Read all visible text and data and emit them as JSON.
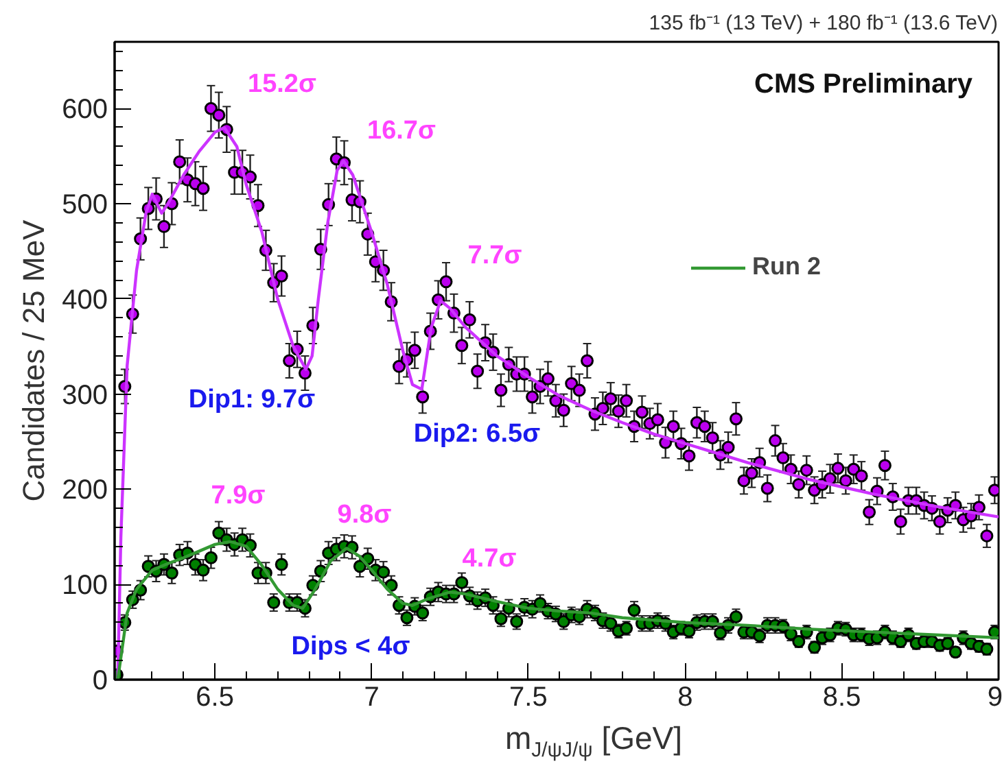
{
  "chart_data": {
    "type": "scatter",
    "title": "135 fb⁻¹ (13 TeV) + 180 fb⁻¹ (13.6 TeV)",
    "xlabel": "m$_{J/ψJ/ψ}$ [GeV]",
    "ylabel": "Candidates / 25 MeV",
    "xlim": [
      6.18,
      9.0
    ],
    "xticks": [
      6.5,
      7,
      7.5,
      8,
      8.5,
      9
    ],
    "ylim": [
      0,
      670
    ],
    "yticks": [
      0,
      100,
      200,
      300,
      400,
      500,
      600
    ],
    "grid": false,
    "legend": "right",
    "x": [
      6.1875,
      6.2125,
      6.2375,
      6.2625,
      6.2875,
      6.3125,
      6.3375,
      6.3625,
      6.3875,
      6.4125,
      6.4375,
      6.4625,
      6.4875,
      6.5125,
      6.5375,
      6.5625,
      6.5875,
      6.6125,
      6.6375,
      6.6625,
      6.6875,
      6.7125,
      6.7375,
      6.7625,
      6.7875,
      6.8125,
      6.8375,
      6.8625,
      6.8875,
      6.9125,
      6.9375,
      6.9625,
      6.9875,
      7.0125,
      7.0375,
      7.0625,
      7.0875,
      7.1125,
      7.1375,
      7.1625,
      7.1875,
      7.2125,
      7.2375,
      7.2625,
      7.2875,
      7.3125,
      7.3375,
      7.3625,
      7.3875,
      7.4125,
      7.4375,
      7.4625,
      7.4875,
      7.5125,
      7.5375,
      7.5625,
      7.5875,
      7.6125,
      7.6375,
      7.6625,
      7.6875,
      7.7125,
      7.7375,
      7.7625,
      7.7875,
      7.8125,
      7.8375,
      7.8625,
      7.8875,
      7.9125,
      7.9375,
      7.9625,
      7.9875,
      8.0125,
      8.0375,
      8.0625,
      8.0875,
      8.1125,
      8.1375,
      8.1625,
      8.1875,
      8.2125,
      8.2375,
      8.2625,
      8.2875,
      8.3125,
      8.3375,
      8.3625,
      8.3875,
      8.4125,
      8.4375,
      8.4625,
      8.4875,
      8.5125,
      8.5375,
      8.5625,
      8.5875,
      8.6125,
      8.6375,
      8.6625,
      8.6875,
      8.7125,
      8.7375,
      8.7625,
      8.7875,
      8.8125,
      8.8375,
      8.8625,
      8.8875,
      8.9125,
      8.9375,
      8.9625,
      8.9875
    ],
    "series": [
      {
        "marker": "circle",
        "color": "#bb00ee",
        "values": [
          30,
          308,
          384,
          463,
          495,
          505,
          476,
          500,
          544,
          525,
          521,
          516,
          600,
          593,
          578,
          533,
          533,
          528,
          498,
          451,
          417,
          424,
          335,
          347,
          322,
          372,
          452,
          499,
          547,
          543,
          504,
          502,
          468,
          439,
          430,
          397,
          329,
          336,
          346,
          297,
          366,
          399,
          418,
          385,
          351,
          378,
          324,
          354,
          344,
          304,
          331,
          321,
          321,
          297,
          308,
          316,
          293,
          283,
          311,
          304,
          335,
          279,
          285,
          295,
          282,
          293,
          266,
          281,
          269,
          273,
          249,
          266,
          248,
          235,
          270,
          266,
          254,
          236,
          244,
          274,
          209,
          217,
          228,
          201,
          251,
          233,
          221,
          205,
          220,
          199,
          205,
          211,
          222,
          209,
          221,
          214,
          176,
          198,
          225,
          192,
          166,
          188,
          188,
          183,
          180,
          166,
          178,
          183,
          168,
          172,
          181,
          151,
          199
        ],
        "errors": [
          5,
          18,
          20,
          22,
          22,
          22,
          22,
          22,
          23,
          23,
          23,
          23,
          24,
          24,
          24,
          23,
          23,
          23,
          22,
          21,
          20,
          21,
          18,
          19,
          18,
          19,
          21,
          22,
          23,
          23,
          22,
          22,
          22,
          21,
          21,
          20,
          18,
          18,
          19,
          17,
          19,
          20,
          20,
          20,
          19,
          19,
          18,
          19,
          19,
          17,
          18,
          18,
          18,
          17,
          18,
          18,
          17,
          17,
          18,
          17,
          18,
          17,
          17,
          17,
          17,
          17,
          16,
          17,
          16,
          17,
          16,
          16,
          16,
          15,
          16,
          16,
          16,
          15,
          16,
          17,
          14,
          15,
          15,
          14,
          16,
          15,
          15,
          14,
          15,
          14,
          14,
          15,
          15,
          14,
          15,
          15,
          13,
          14,
          15,
          14,
          13,
          14,
          14,
          14,
          13,
          13,
          13,
          14,
          13,
          13,
          13,
          12,
          14
        ]
      },
      {
        "marker": "circle",
        "color": "#008000",
        "values": [
          5,
          60,
          84,
          94,
          119,
          114,
          121,
          112,
          131,
          133,
          121,
          115,
          128,
          154,
          147,
          142,
          147,
          141,
          112,
          112,
          81,
          121,
          81,
          81,
          75,
          99,
          114,
          133,
          137,
          140,
          139,
          119,
          127,
          115,
          113,
          99,
          78,
          65,
          77,
          70,
          87,
          92,
          90,
          90,
          102,
          88,
          83,
          86,
          78,
          64,
          75,
          61,
          76,
          74,
          80,
          72,
          69,
          61,
          68,
          66,
          74,
          70,
          62,
          59,
          51,
          54,
          73,
          59,
          59,
          62,
          59,
          50,
          54,
          51,
          60,
          61,
          61,
          49,
          57,
          66,
          50,
          50,
          46,
          57,
          57,
          56,
          48,
          40,
          50,
          34,
          44,
          47,
          54,
          53,
          47,
          47,
          43,
          44,
          50,
          44,
          40,
          47,
          38,
          40,
          40,
          36,
          38,
          29,
          44,
          38,
          35,
          32,
          50
        ],
        "errors": [
          2,
          8,
          9,
          10,
          11,
          11,
          11,
          11,
          11,
          12,
          11,
          11,
          11,
          12,
          12,
          12,
          12,
          12,
          11,
          11,
          9,
          11,
          9,
          9,
          9,
          10,
          11,
          12,
          12,
          12,
          12,
          11,
          11,
          11,
          11,
          10,
          9,
          8,
          9,
          8,
          9,
          10,
          9,
          9,
          10,
          9,
          9,
          9,
          9,
          8,
          9,
          8,
          9,
          9,
          9,
          8,
          8,
          8,
          8,
          8,
          9,
          8,
          8,
          8,
          7,
          7,
          9,
          8,
          8,
          8,
          8,
          7,
          7,
          7,
          8,
          8,
          8,
          7,
          8,
          8,
          7,
          7,
          7,
          8,
          8,
          7,
          7,
          6,
          7,
          6,
          7,
          7,
          7,
          7,
          7,
          7,
          7,
          7,
          7,
          7,
          6,
          7,
          6,
          6,
          6,
          6,
          6,
          5,
          7,
          6,
          6,
          6,
          7
        ]
      },
      {
        "type": "line",
        "color": "#cc33ff",
        "x": [
          6.19,
          6.2,
          6.22,
          6.25,
          6.28,
          6.3,
          6.33,
          6.35,
          6.4,
          6.45,
          6.5,
          6.53,
          6.57,
          6.6,
          6.65,
          6.7,
          6.75,
          6.79,
          6.81,
          6.83,
          6.86,
          6.89,
          6.91,
          6.94,
          7.0,
          7.05,
          7.1,
          7.13,
          7.16,
          7.19,
          7.22,
          7.25,
          7.3,
          7.4,
          7.5,
          7.6,
          7.7,
          7.8,
          7.9,
          8.0,
          8.2,
          8.4,
          8.6,
          8.8,
          9.0
        ],
        "values": [
          0,
          150,
          330,
          430,
          490,
          510,
          490,
          500,
          530,
          555,
          575,
          580,
          560,
          520,
          470,
          400,
          350,
          326,
          340,
          400,
          480,
          535,
          545,
          530,
          470,
          415,
          345,
          310,
          305,
          370,
          398,
          390,
          370,
          340,
          318,
          298,
          283,
          270,
          258,
          248,
          228,
          210,
          195,
          182,
          171
        ]
      },
      {
        "type": "line",
        "name": "Run 2",
        "color": "#339933",
        "x": [
          6.19,
          6.22,
          6.25,
          6.3,
          6.35,
          6.4,
          6.45,
          6.5,
          6.55,
          6.6,
          6.65,
          6.7,
          6.75,
          6.78,
          6.82,
          6.87,
          6.92,
          6.96,
          7.0,
          7.05,
          7.1,
          7.13,
          7.18,
          7.25,
          7.3,
          7.4,
          7.5,
          7.6,
          7.7,
          7.8,
          8.0,
          8.2,
          8.4,
          8.6,
          8.8,
          9.0
        ],
        "values": [
          0,
          70,
          95,
          115,
          122,
          128,
          135,
          142,
          145,
          140,
          120,
          95,
          78,
          75,
          95,
          125,
          138,
          130,
          115,
          95,
          80,
          78,
          85,
          92,
          90,
          82,
          75,
          72,
          70,
          65,
          60,
          57,
          53,
          50,
          47,
          44
        ]
      }
    ],
    "annotations": [
      "CMS Preliminary",
      "15.2σ",
      "16.7σ",
      "7.7σ",
      "Dip1: 9.7σ",
      "Dip2: 6.5σ",
      "7.9σ",
      "9.8σ",
      "4.7σ",
      "Dips < 4σ"
    ]
  }
}
